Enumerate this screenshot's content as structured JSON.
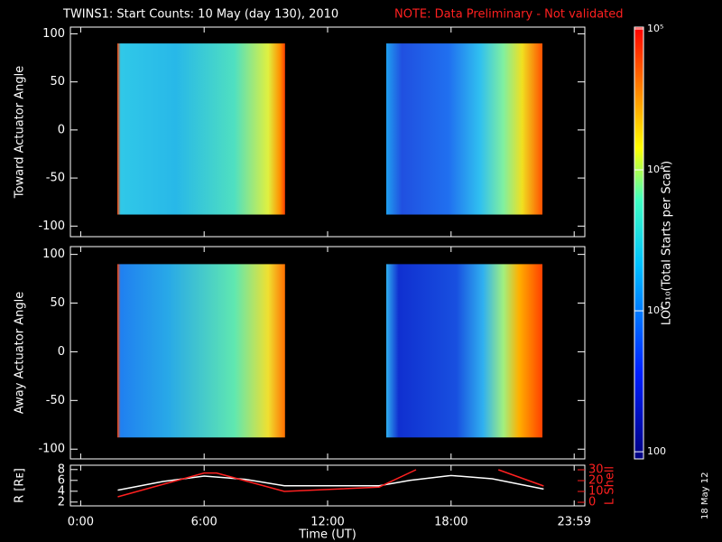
{
  "title": "TWINS1: Start Counts: 10 May (day 130), 2010",
  "note": "NOTE: Data Preliminary - Not validated",
  "date_stamp": "18 May 12",
  "chart_data": [
    {
      "type": "heatmap",
      "ylabel": "Toward Actuator Angle",
      "xlim": [
        -0.5,
        24.5
      ],
      "ylim": [
        -111,
        107
      ],
      "yticks": [
        -100,
        -50,
        0,
        50,
        100
      ],
      "xticks": [
        {
          "value": 0,
          "label": "0:00"
        },
        {
          "value": 6,
          "label": "6:00"
        },
        {
          "value": 12,
          "label": "12:00"
        },
        {
          "value": 18,
          "label": "18:00"
        },
        {
          "value": 23.983,
          "label": "23:59"
        }
      ],
      "intervals": [
        [
          1.78,
          9.93
        ],
        [
          14.85,
          22.44
        ]
      ],
      "angle_range": [
        -88,
        90
      ]
    },
    {
      "type": "heatmap",
      "ylabel": "Away Actuator Angle",
      "xlim": [
        -0.5,
        24.5
      ],
      "ylim": [
        -110,
        108
      ],
      "yticks": [
        -100,
        -50,
        0,
        50,
        100
      ],
      "xticks": [
        {
          "value": 0,
          "label": "0:00"
        },
        {
          "value": 6,
          "label": "6:00"
        },
        {
          "value": 12,
          "label": "12:00"
        },
        {
          "value": 18,
          "label": "18:00"
        },
        {
          "value": 23.983,
          "label": "23:59"
        }
      ],
      "intervals": [
        [
          1.78,
          9.93
        ],
        [
          14.85,
          22.44
        ]
      ],
      "angle_range": [
        -88,
        90
      ]
    },
    {
      "type": "line",
      "xlabel": "Time (UT)",
      "ylabel": "R [Rᴇ]",
      "y2label": "L Shell",
      "xlim": [
        -0.5,
        24.5
      ],
      "ylim": [
        1.3,
        8.8
      ],
      "y2lim": [
        -3.3,
        34.2
      ],
      "xticks": [
        {
          "value": 0,
          "label": "0:00"
        },
        {
          "value": 6,
          "label": "6:00"
        },
        {
          "value": 12,
          "label": "12:00"
        },
        {
          "value": 18,
          "label": "18:00"
        },
        {
          "value": 23.983,
          "label": "23:59"
        }
      ],
      "yticks": [
        2,
        4,
        6,
        8
      ],
      "y2ticks": [
        0,
        10,
        20,
        30
      ],
      "series": [
        {
          "name": "R",
          "color": "#ffffff",
          "x": [
            1.8,
            4,
            6,
            8,
            9.9,
            12,
            14.5,
            16,
            18,
            20,
            22.5
          ],
          "values": [
            4.2,
            5.8,
            6.8,
            6.2,
            5.0,
            5.0,
            5.0,
            6.0,
            6.9,
            6.3,
            4.4
          ]
        },
        {
          "name": "L Shell",
          "color": "#ff2020",
          "axis": "y2",
          "x": [
            1.8,
            6,
            6.6,
            9.9,
            14.5,
            16.3,
            18,
            20.3,
            22.5
          ],
          "values": [
            5,
            27,
            27,
            10,
            14,
            30,
            null,
            30,
            15
          ]
        }
      ]
    },
    {
      "type": "colorbar",
      "label": "LOG₁₀(Total Starts per Scan)",
      "log": true,
      "ylim": [
        89,
        103000
      ],
      "yticks": [
        {
          "value": 100,
          "label": "100"
        },
        {
          "value": 1000,
          "label": "10³"
        },
        {
          "value": 10000,
          "label": "10⁴"
        },
        {
          "value": 100000,
          "label": "10⁵"
        }
      ]
    }
  ]
}
